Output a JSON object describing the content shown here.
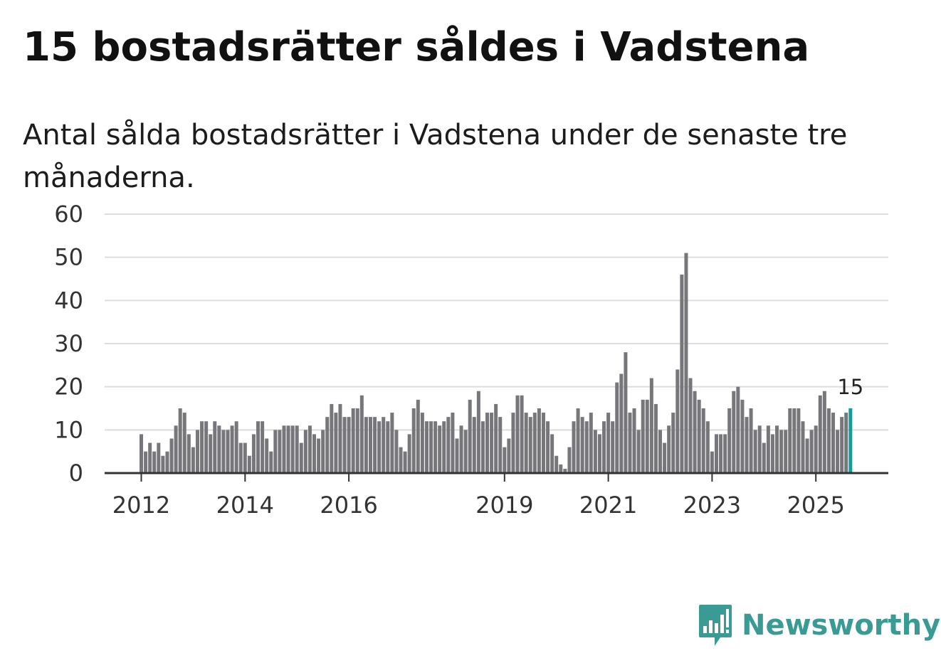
{
  "title": "15 bostadsrätter såldes i Vadstena",
  "subtitle": "Antal sålda bostadsrätter i Vadstena under de senaste tre månaderna.",
  "brand": {
    "name": "Newsworthy",
    "color": "#3a9a94",
    "icon": "newsworthy-logo-icon"
  },
  "colors": {
    "bar": "#77767a",
    "highlight": "#1a9c95",
    "grid": "#dddddd",
    "axis": "#333333"
  },
  "chart_data": {
    "type": "bar",
    "title": "15 bostadsrätter såldes i Vadstena",
    "xlabel": "",
    "ylabel": "",
    "ylim": [
      0,
      60
    ],
    "yticks": [
      0,
      10,
      20,
      30,
      40,
      50,
      60
    ],
    "xticks": [
      {
        "label": "2012",
        "index": 0
      },
      {
        "label": "2014",
        "index": 24
      },
      {
        "label": "2016",
        "index": 48
      },
      {
        "label": "2019",
        "index": 84
      },
      {
        "label": "2021",
        "index": 108
      },
      {
        "label": "2023",
        "index": 132
      },
      {
        "label": "2025",
        "index": 156
      }
    ],
    "start": "2012-01",
    "frequency": "monthly",
    "values": [
      9,
      5,
      7,
      5,
      7,
      4,
      5,
      8,
      11,
      15,
      14,
      9,
      6,
      10,
      12,
      12,
      9,
      12,
      11,
      10,
      10,
      11,
      12,
      7,
      7,
      4,
      9,
      12,
      12,
      8,
      5,
      10,
      10,
      11,
      11,
      11,
      11,
      7,
      10,
      11,
      9,
      8,
      10,
      13,
      16,
      14,
      16,
      13,
      13,
      15,
      15,
      18,
      13,
      13,
      13,
      12,
      13,
      12,
      14,
      10,
      6,
      5,
      9,
      15,
      17,
      14,
      12,
      12,
      12,
      11,
      12,
      13,
      14,
      8,
      11,
      10,
      17,
      13,
      19,
      12,
      14,
      14,
      16,
      13,
      6,
      8,
      14,
      18,
      18,
      14,
      13,
      14,
      15,
      14,
      12,
      9,
      4,
      2,
      1,
      6,
      12,
      15,
      13,
      12,
      14,
      10,
      9,
      12,
      14,
      12,
      21,
      23,
      28,
      14,
      15,
      10,
      17,
      17,
      22,
      16,
      10,
      7,
      11,
      14,
      24,
      46,
      51,
      22,
      19,
      17,
      15,
      12,
      5,
      9,
      9,
      9,
      15,
      19,
      20,
      17,
      13,
      15,
      10,
      11,
      7,
      11,
      9,
      11,
      10,
      10,
      15,
      15,
      15,
      12,
      8,
      10,
      11,
      18,
      19,
      15,
      14,
      10,
      13,
      14,
      15
    ],
    "highlight_index": 164,
    "annotation": {
      "label": "15",
      "index": 164
    }
  }
}
